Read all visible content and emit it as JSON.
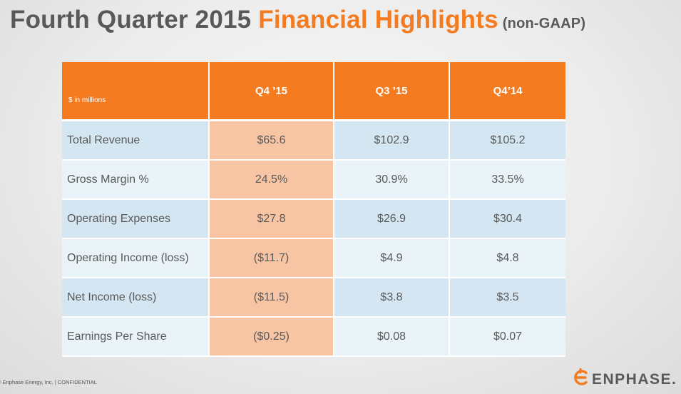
{
  "title": {
    "part1": "Fourth Quarter 2015 ",
    "part2": "Financial Highlights",
    "part3": "(non-GAAP)"
  },
  "table": {
    "units": "$ in millions",
    "headers": [
      "Q4 ’15",
      "Q3 ’15",
      "Q4’14"
    ],
    "rows": [
      {
        "label": "Total Revenue",
        "values": [
          "$65.6",
          "$102.9",
          "$105.2"
        ]
      },
      {
        "label": "Gross Margin %",
        "values": [
          "24.5%",
          "30.9%",
          "33.5%"
        ]
      },
      {
        "label": "Operating Expenses",
        "values": [
          "$27.8",
          "$26.9",
          "$30.4"
        ]
      },
      {
        "label": "Operating Income (loss)",
        "values": [
          "($11.7)",
          "$4.9",
          "$4.8"
        ]
      },
      {
        "label": "Net Income (loss)",
        "values": [
          "($11.5)",
          "$3.8",
          "$3.5"
        ]
      },
      {
        "label": "Earnings Per Share",
        "values": [
          "($0.25)",
          "$0.08",
          "$0.07"
        ]
      }
    ]
  },
  "footer": "© Enphase Energy, Inc. | CONFIDENTIAL",
  "logo": {
    "text": "ENPHASE.",
    "icon": "enphase-logo-icon"
  },
  "colors": {
    "accent": "#f47b20",
    "title_gray": "#595959",
    "row_blue": "#d3e6f1",
    "row_light": "#e9f3f8",
    "highlight_peach": "#f8c5a4"
  }
}
